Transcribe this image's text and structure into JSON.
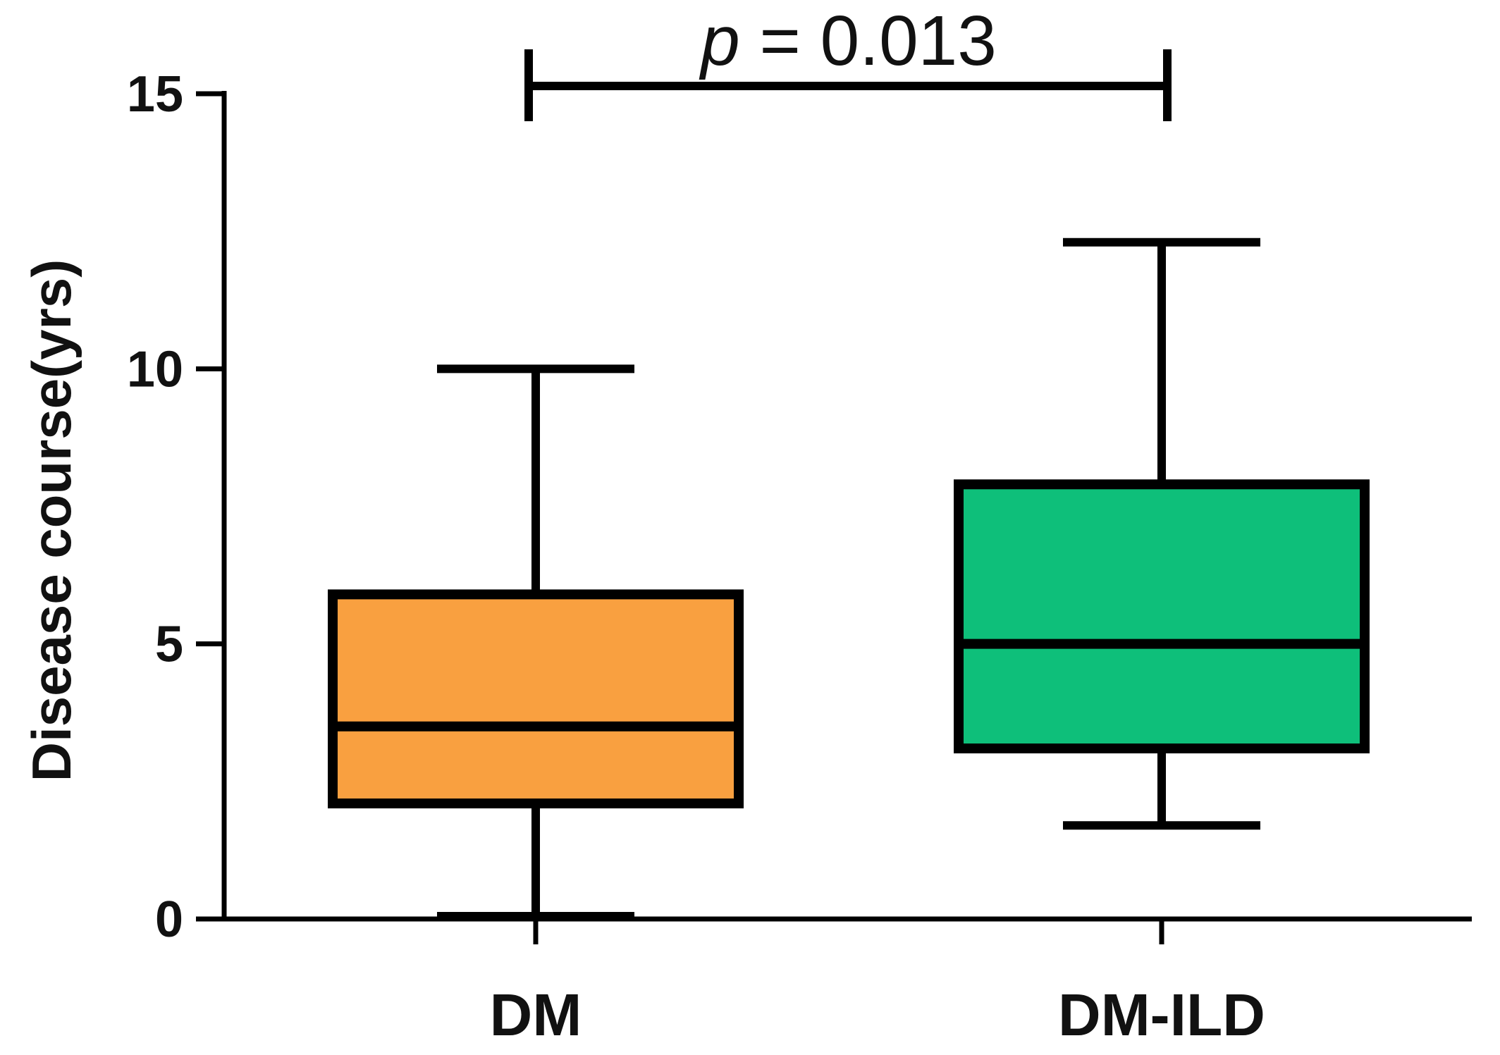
{
  "chart_data": {
    "type": "box",
    "ylabel": "Disease course(yrs)",
    "ylim": [
      0,
      15
    ],
    "yticks": [
      0,
      5,
      10,
      15
    ],
    "yticks_labels": [
      "0",
      "5",
      "10",
      "15"
    ],
    "grid": false,
    "categories": [
      "DM",
      "DM-ILD"
    ],
    "boxes": [
      {
        "label": "DM",
        "min": 0,
        "q1": 2.1,
        "median": 3.5,
        "q3": 5.9,
        "max": 10,
        "color": "#F9A040"
      },
      {
        "label": "DM-ILD",
        "min": 1.7,
        "q1": 3.1,
        "median": 5.0,
        "q3": 7.9,
        "max": 12.3,
        "color": "#0EBF7A"
      }
    ],
    "annotation": {
      "p_symbol": "p",
      "p_value_text": "= 0.013",
      "between": [
        "DM",
        "DM-ILD"
      ]
    }
  }
}
